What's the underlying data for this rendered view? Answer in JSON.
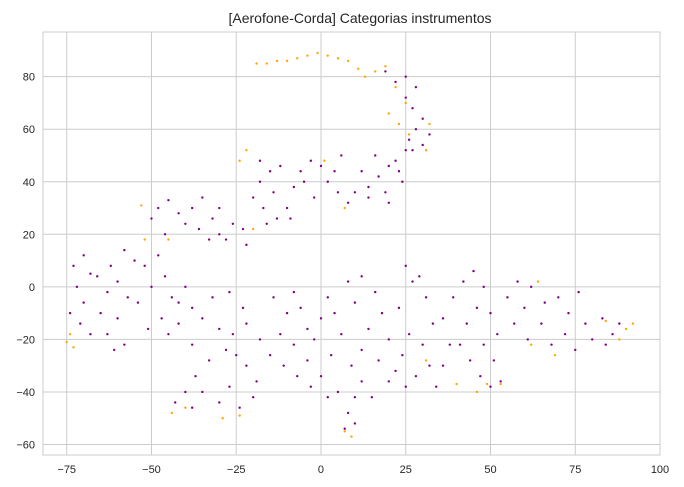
{
  "chart_data": {
    "type": "scatter",
    "title": "[Aerofone-Corda] Categorias instrumentos",
    "xlabel": "",
    "ylabel": "",
    "xlim": [
      -82,
      100
    ],
    "ylim": [
      -64,
      97
    ],
    "xticks": [
      -75,
      -50,
      -25,
      0,
      25,
      50,
      75,
      100
    ],
    "yticks": [
      -60,
      -40,
      -20,
      0,
      20,
      40,
      60,
      80
    ],
    "grid": true,
    "legend": "none",
    "series": [
      {
        "color": "#800080",
        "points": [
          [
            -73,
            8
          ],
          [
            -70,
            12
          ],
          [
            -68,
            5
          ],
          [
            -72,
            0
          ],
          [
            -70,
            -6
          ],
          [
            -74,
            -10
          ],
          [
            -71,
            -14
          ],
          [
            -68,
            -18
          ],
          [
            -65,
            -10
          ],
          [
            -63,
            -2
          ],
          [
            -66,
            4
          ],
          [
            -62,
            8
          ],
          [
            -58,
            14
          ],
          [
            -55,
            10
          ],
          [
            -60,
            2
          ],
          [
            -57,
            -4
          ],
          [
            -60,
            -12
          ],
          [
            -63,
            -18
          ],
          [
            -58,
            -22
          ],
          [
            -61,
            -24
          ],
          [
            -54,
            -6
          ],
          [
            -50,
            0
          ],
          [
            -52,
            8
          ],
          [
            -48,
            12
          ],
          [
            -46,
            4
          ],
          [
            -44,
            -4
          ],
          [
            -47,
            -12
          ],
          [
            -51,
            -16
          ],
          [
            -45,
            -18
          ],
          [
            -42,
            -6
          ],
          [
            -40,
            0
          ],
          [
            -38,
            -8
          ],
          [
            -42,
            -14
          ],
          [
            -48,
            30
          ],
          [
            -45,
            33
          ],
          [
            -42,
            28
          ],
          [
            -38,
            30
          ],
          [
            -35,
            34
          ],
          [
            -32,
            26
          ],
          [
            -36,
            22
          ],
          [
            -30,
            20
          ],
          [
            -26,
            24
          ],
          [
            -23,
            22
          ],
          [
            -22,
            16
          ],
          [
            -28,
            18
          ],
          [
            -33,
            18
          ],
          [
            -40,
            24
          ],
          [
            -50,
            26
          ],
          [
            -46,
            20
          ],
          [
            -30,
            30
          ],
          [
            -18,
            48
          ],
          [
            -15,
            44
          ],
          [
            -12,
            46
          ],
          [
            -18,
            40
          ],
          [
            -14,
            36
          ],
          [
            -17,
            30
          ],
          [
            -13,
            26
          ],
          [
            -10,
            30
          ],
          [
            -8,
            38
          ],
          [
            -6,
            44
          ],
          [
            -3,
            48
          ],
          [
            0,
            46
          ],
          [
            -5,
            40
          ],
          [
            -2,
            34
          ],
          [
            2,
            40
          ],
          [
            4,
            44
          ],
          [
            6,
            50
          ],
          [
            -20,
            34
          ],
          [
            -16,
            24
          ],
          [
            -9,
            26
          ],
          [
            5,
            36
          ],
          [
            8,
            32
          ],
          [
            10,
            36
          ],
          [
            14,
            38
          ],
          [
            17,
            42
          ],
          [
            20,
            46
          ],
          [
            16,
            50
          ],
          [
            22,
            48
          ],
          [
            25,
            52
          ],
          [
            23,
            44
          ],
          [
            19,
            36
          ],
          [
            14,
            34
          ],
          [
            12,
            44
          ],
          [
            24,
            40
          ],
          [
            26,
            56
          ],
          [
            28,
            60
          ],
          [
            30,
            64
          ],
          [
            27,
            68
          ],
          [
            25,
            72
          ],
          [
            30,
            54
          ],
          [
            32,
            58
          ],
          [
            28,
            76
          ],
          [
            25,
            80
          ],
          [
            19,
            82
          ],
          [
            22,
            78
          ],
          [
            27,
            52
          ],
          [
            20,
            32
          ],
          [
            -38,
            -22
          ],
          [
            -35,
            -12
          ],
          [
            -32,
            -4
          ],
          [
            -30,
            -16
          ],
          [
            -28,
            -24
          ],
          [
            -33,
            -28
          ],
          [
            -37,
            -34
          ],
          [
            -40,
            -40
          ],
          [
            -43,
            -44
          ],
          [
            -38,
            -46
          ],
          [
            -35,
            -40
          ],
          [
            -30,
            -44
          ],
          [
            -27,
            -38
          ],
          [
            -24,
            -46
          ],
          [
            -20,
            -42
          ],
          [
            -19,
            -36
          ],
          [
            -22,
            -30
          ],
          [
            -25,
            -26
          ],
          [
            -26,
            -18
          ],
          [
            -23,
            -8
          ],
          [
            -27,
            -2
          ],
          [
            -22,
            -14
          ],
          [
            -18,
            -20
          ],
          [
            -15,
            -26
          ],
          [
            -12,
            -18
          ],
          [
            -10,
            -10
          ],
          [
            -14,
            -4
          ],
          [
            -8,
            -2
          ],
          [
            -6,
            -8
          ],
          [
            -4,
            -16
          ],
          [
            -8,
            -22
          ],
          [
            -11,
            -30
          ],
          [
            -7,
            -34
          ],
          [
            -4,
            -28
          ],
          [
            -2,
            -20
          ],
          [
            0,
            -12
          ],
          [
            2,
            -4
          ],
          [
            4,
            -10
          ],
          [
            6,
            -18
          ],
          [
            3,
            -26
          ],
          [
            0,
            -34
          ],
          [
            -3,
            -38
          ],
          [
            2,
            -42
          ],
          [
            5,
            -40
          ],
          [
            8,
            -48
          ],
          [
            10,
            -52
          ],
          [
            7,
            -54
          ],
          [
            10,
            -42
          ],
          [
            12,
            -36
          ],
          [
            9,
            -30
          ],
          [
            12,
            -24
          ],
          [
            14,
            -16
          ],
          [
            10,
            -6
          ],
          [
            8,
            2
          ],
          [
            12,
            4
          ],
          [
            16,
            -2
          ],
          [
            18,
            -10
          ],
          [
            20,
            -20
          ],
          [
            17,
            -28
          ],
          [
            22,
            -32
          ],
          [
            25,
            -38
          ],
          [
            20,
            -36
          ],
          [
            15,
            -42
          ],
          [
            24,
            -26
          ],
          [
            26,
            -18
          ],
          [
            23,
            -8
          ],
          [
            27,
            2
          ],
          [
            25,
            8
          ],
          [
            29,
            4
          ],
          [
            31,
            -4
          ],
          [
            33,
            -14
          ],
          [
            30,
            -22
          ],
          [
            32,
            -30
          ],
          [
            28,
            -34
          ],
          [
            34,
            -38
          ],
          [
            36,
            -30
          ],
          [
            38,
            -22
          ],
          [
            36,
            -12
          ],
          [
            39,
            -4
          ],
          [
            42,
            2
          ],
          [
            45,
            6
          ],
          [
            48,
            0
          ],
          [
            46,
            -8
          ],
          [
            43,
            -14
          ],
          [
            41,
            -22
          ],
          [
            44,
            -28
          ],
          [
            47,
            -34
          ],
          [
            50,
            -38
          ],
          [
            53,
            -36
          ],
          [
            51,
            -28
          ],
          [
            48,
            -22
          ],
          [
            52,
            -18
          ],
          [
            50,
            -10
          ],
          [
            55,
            -4
          ],
          [
            58,
            2
          ],
          [
            62,
            0
          ],
          [
            60,
            -8
          ],
          [
            57,
            -14
          ],
          [
            61,
            -20
          ],
          [
            65,
            -14
          ],
          [
            68,
            -22
          ],
          [
            72,
            -18
          ],
          [
            75,
            -24
          ],
          [
            73,
            -10
          ],
          [
            70,
            -4
          ],
          [
            76,
            -2
          ],
          [
            78,
            -14
          ],
          [
            80,
            -20
          ],
          [
            83,
            -12
          ],
          [
            86,
            -18
          ],
          [
            88,
            -14
          ],
          [
            84,
            -22
          ],
          [
            66,
            -6
          ]
        ]
      },
      {
        "color": "#FFA500",
        "points": [
          [
            -19,
            85
          ],
          [
            -16,
            85
          ],
          [
            -13,
            86
          ],
          [
            -10,
            86
          ],
          [
            -7,
            87
          ],
          [
            -4,
            88
          ],
          [
            -1,
            89
          ],
          [
            2,
            88
          ],
          [
            5,
            87
          ],
          [
            8,
            86
          ],
          [
            11,
            83
          ],
          [
            13,
            80
          ],
          [
            16,
            82
          ],
          [
            19,
            84
          ],
          [
            22,
            76
          ],
          [
            25,
            70
          ],
          [
            20,
            66
          ],
          [
            23,
            62
          ],
          [
            26,
            58
          ],
          [
            31,
            52
          ],
          [
            32,
            62
          ],
          [
            -74,
            -18
          ],
          [
            -75,
            -21
          ],
          [
            -73,
            -23
          ],
          [
            -52,
            18
          ],
          [
            -53,
            31
          ],
          [
            -24,
            48
          ],
          [
            -22,
            52
          ],
          [
            -20,
            22
          ],
          [
            1,
            48
          ],
          [
            7,
            30
          ],
          [
            -40,
            -46
          ],
          [
            -44,
            -48
          ],
          [
            -29,
            -50
          ],
          [
            -24,
            -49
          ],
          [
            7,
            -55
          ],
          [
            9,
            -57
          ],
          [
            31,
            -28
          ],
          [
            40,
            -37
          ],
          [
            46,
            -40
          ],
          [
            49,
            -37
          ],
          [
            53,
            -37
          ],
          [
            62,
            -22
          ],
          [
            69,
            -26
          ],
          [
            84,
            -13
          ],
          [
            90,
            -16
          ],
          [
            92,
            -14
          ],
          [
            88,
            -20
          ],
          [
            -45,
            18
          ],
          [
            64,
            2
          ]
        ]
      }
    ]
  }
}
